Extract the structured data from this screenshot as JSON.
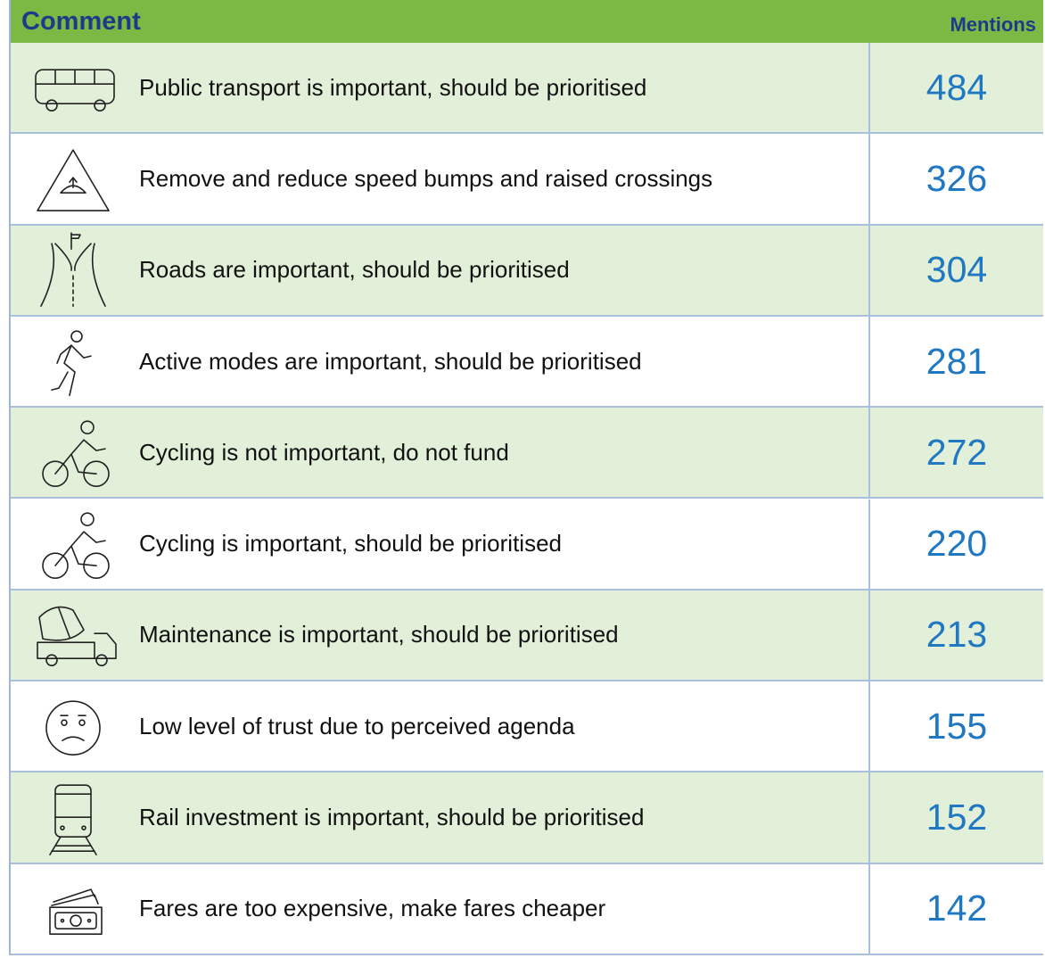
{
  "header": {
    "comment": "Comment",
    "mentions": "Mentions"
  },
  "rows": [
    {
      "comment": "Public transport is important, should be prioritised",
      "mentions": 484
    },
    {
      "comment": "Remove and reduce speed bumps and raised crossings",
      "mentions": 326
    },
    {
      "comment": "Roads are important, should be prioritised",
      "mentions": 304
    },
    {
      "comment": "Active modes are important, should be prioritised",
      "mentions": 281
    },
    {
      "comment": "Cycling is not important, do not fund",
      "mentions": 272
    },
    {
      "comment": "Cycling is important, should be prioritised",
      "mentions": 220
    },
    {
      "comment": "Maintenance is important, should be prioritised",
      "mentions": 213
    },
    {
      "comment": "Low level of trust due to perceived agenda",
      "mentions": 155
    },
    {
      "comment": "Rail investment is important, should be prioritised",
      "mentions": 152
    },
    {
      "comment": "Fares are too expensive, make fares cheaper",
      "mentions": 142
    }
  ]
}
